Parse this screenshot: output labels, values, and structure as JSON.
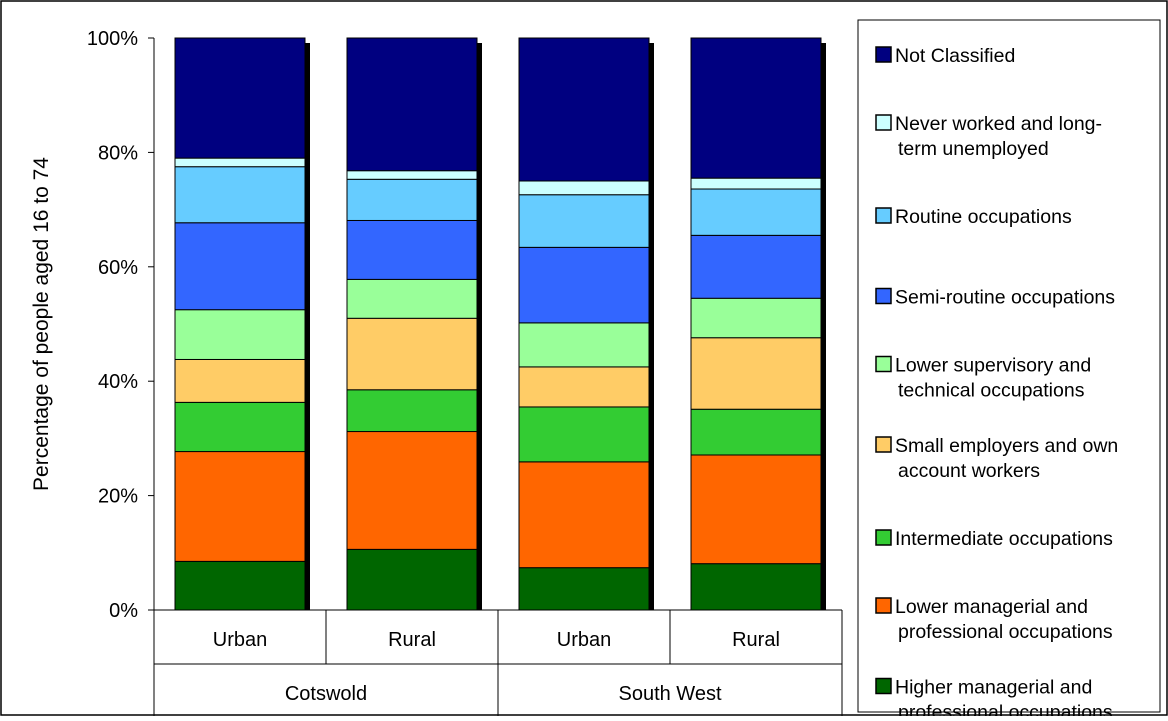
{
  "chart_data": {
    "type": "bar",
    "stacked": true,
    "normalized": true,
    "groups": [
      {
        "label": "Cotswold",
        "categories": [
          "Urban",
          "Rural"
        ]
      },
      {
        "label": "South West",
        "categories": [
          "Urban",
          "Rural"
        ]
      }
    ],
    "categories": [
      "Urban",
      "Rural",
      "Urban",
      "Rural"
    ],
    "ylabel": "Percentage of people aged 16 to 74",
    "ylim": [
      0,
      100
    ],
    "yticks": [
      "0%",
      "20%",
      "40%",
      "60%",
      "80%",
      "100%"
    ],
    "ytick_values": [
      0,
      20,
      40,
      60,
      80,
      100
    ],
    "legend_position": "right",
    "series": [
      {
        "name": "Higher managerial and professional occupations",
        "color": "#006600",
        "values": [
          8.5,
          10.6,
          7.4,
          8.1
        ]
      },
      {
        "name": "Lower managerial and professional occupations",
        "color": "#FF6600",
        "values": [
          19.2,
          20.6,
          18.5,
          19.0
        ]
      },
      {
        "name": "Intermediate occupations",
        "color": "#33CC33",
        "values": [
          8.6,
          7.3,
          9.6,
          8.0
        ]
      },
      {
        "name": "Small employers and own account workers",
        "color": "#FFCC66",
        "values": [
          7.5,
          12.5,
          7.0,
          12.5
        ]
      },
      {
        "name": "Lower supervisory and technical occupations",
        "color": "#99FF99",
        "values": [
          8.7,
          6.8,
          7.7,
          6.9
        ]
      },
      {
        "name": "Semi-routine occupations",
        "color": "#3366FF",
        "values": [
          15.2,
          10.3,
          13.2,
          11.0
        ]
      },
      {
        "name": "Routine occupations",
        "color": "#66CCFF",
        "values": [
          9.8,
          7.2,
          9.2,
          8.1
        ]
      },
      {
        "name": "Never worked and long-term unemployed",
        "color": "#CCFFFF",
        "values": [
          1.5,
          1.5,
          2.4,
          1.9
        ]
      },
      {
        "name": "Not Classified",
        "color": "#000080",
        "values": [
          21.0,
          23.2,
          25.0,
          24.5
        ]
      }
    ]
  }
}
